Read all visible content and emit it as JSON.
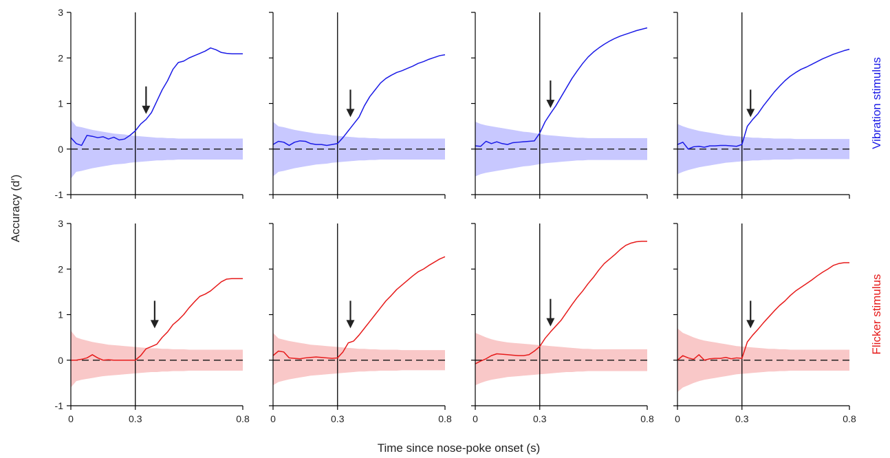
{
  "figure": {
    "ylabel": "Accuracy (d′)",
    "xlabel": "Time since nose-poke onset (s)",
    "row_labels": [
      {
        "text": "Vibration stimulus",
        "color": "#1a1ae6"
      },
      {
        "text": "Flicker stimulus",
        "color": "#e61a1a"
      }
    ]
  },
  "chart_data": [
    {
      "type": "line",
      "row": "Vibration stimulus",
      "xlim": [
        0,
        0.8
      ],
      "ylim": [
        -1,
        3
      ],
      "xticks": [
        "0",
        "0.3",
        "0.8"
      ],
      "yticks": [
        "-1",
        "0",
        "1",
        "2",
        "3"
      ],
      "color": "#1a1ae6",
      "band_color": "#c8c8ff",
      "onset_line_x": 0.3,
      "arrow_x": 0.35,
      "x": [
        0,
        0.025,
        0.05,
        0.075,
        0.1,
        0.125,
        0.15,
        0.175,
        0.2,
        0.225,
        0.25,
        0.275,
        0.3,
        0.325,
        0.35,
        0.375,
        0.4,
        0.425,
        0.45,
        0.475,
        0.5,
        0.525,
        0.55,
        0.575,
        0.6,
        0.625,
        0.65,
        0.675,
        0.7,
        0.725,
        0.75,
        0.775,
        0.8
      ],
      "y": [
        0.25,
        0.12,
        0.08,
        0.3,
        0.28,
        0.25,
        0.27,
        0.22,
        0.26,
        0.2,
        0.22,
        0.3,
        0.4,
        0.55,
        0.65,
        0.8,
        1.05,
        1.3,
        1.5,
        1.75,
        1.9,
        1.93,
        2.0,
        2.05,
        2.1,
        2.15,
        2.22,
        2.18,
        2.12,
        2.1,
        2.09,
        2.09,
        2.09
      ],
      "band_upper": [
        0.65,
        0.5,
        0.48,
        0.45,
        0.42,
        0.4,
        0.38,
        0.36,
        0.34,
        0.33,
        0.32,
        0.3,
        0.29,
        0.28,
        0.27,
        0.26,
        0.25,
        0.25,
        0.24,
        0.24,
        0.23,
        0.23,
        0.23,
        0.23,
        0.23,
        0.23,
        0.23,
        0.23,
        0.23,
        0.23,
        0.23,
        0.23,
        0.23
      ],
      "band_lower": [
        -0.65,
        -0.5,
        -0.48,
        -0.45,
        -0.42,
        -0.4,
        -0.38,
        -0.36,
        -0.34,
        -0.33,
        -0.32,
        -0.3,
        -0.29,
        -0.28,
        -0.27,
        -0.26,
        -0.25,
        -0.25,
        -0.24,
        -0.24,
        -0.23,
        -0.23,
        -0.23,
        -0.23,
        -0.23,
        -0.23,
        -0.23,
        -0.23,
        -0.23,
        -0.23,
        -0.23,
        -0.23,
        -0.23
      ]
    },
    {
      "type": "line",
      "row": "Vibration stimulus",
      "xlim": [
        0,
        0.8
      ],
      "ylim": [
        -1,
        3
      ],
      "xticks": [
        "0",
        "0.3",
        "0.8"
      ],
      "yticks": [
        "-1",
        "0",
        "1",
        "2",
        "3"
      ],
      "color": "#1a1ae6",
      "band_color": "#c8c8ff",
      "onset_line_x": 0.3,
      "arrow_x": 0.36,
      "x": [
        0,
        0.025,
        0.05,
        0.075,
        0.1,
        0.125,
        0.15,
        0.175,
        0.2,
        0.225,
        0.25,
        0.275,
        0.3,
        0.325,
        0.35,
        0.375,
        0.4,
        0.425,
        0.45,
        0.475,
        0.5,
        0.525,
        0.55,
        0.575,
        0.6,
        0.625,
        0.65,
        0.675,
        0.7,
        0.725,
        0.75,
        0.775,
        0.8
      ],
      "y": [
        0.1,
        0.17,
        0.15,
        0.08,
        0.15,
        0.18,
        0.17,
        0.12,
        0.1,
        0.1,
        0.08,
        0.1,
        0.12,
        0.25,
        0.4,
        0.55,
        0.7,
        0.95,
        1.15,
        1.3,
        1.45,
        1.55,
        1.62,
        1.68,
        1.72,
        1.77,
        1.82,
        1.88,
        1.92,
        1.97,
        2.01,
        2.05,
        2.07
      ],
      "band_upper": [
        0.6,
        0.5,
        0.48,
        0.45,
        0.42,
        0.4,
        0.38,
        0.36,
        0.34,
        0.33,
        0.32,
        0.3,
        0.29,
        0.28,
        0.27,
        0.26,
        0.25,
        0.25,
        0.24,
        0.24,
        0.23,
        0.23,
        0.23,
        0.23,
        0.23,
        0.23,
        0.23,
        0.23,
        0.23,
        0.23,
        0.23,
        0.23,
        0.23
      ],
      "band_lower": [
        -0.6,
        -0.5,
        -0.48,
        -0.45,
        -0.42,
        -0.4,
        -0.38,
        -0.36,
        -0.34,
        -0.33,
        -0.32,
        -0.3,
        -0.29,
        -0.28,
        -0.27,
        -0.26,
        -0.25,
        -0.25,
        -0.24,
        -0.24,
        -0.23,
        -0.23,
        -0.23,
        -0.23,
        -0.23,
        -0.23,
        -0.23,
        -0.23,
        -0.23,
        -0.23,
        -0.23,
        -0.23,
        -0.23
      ]
    },
    {
      "type": "line",
      "row": "Vibration stimulus",
      "xlim": [
        0,
        0.8
      ],
      "ylim": [
        -1,
        3
      ],
      "xticks": [
        "0",
        "0.3",
        "0.8"
      ],
      "yticks": [
        "-1",
        "0",
        "1",
        "2",
        "3"
      ],
      "color": "#1a1ae6",
      "band_color": "#c8c8ff",
      "onset_line_x": 0.3,
      "arrow_x": 0.35,
      "x": [
        0,
        0.025,
        0.05,
        0.075,
        0.1,
        0.125,
        0.15,
        0.175,
        0.2,
        0.225,
        0.25,
        0.275,
        0.3,
        0.325,
        0.35,
        0.375,
        0.4,
        0.425,
        0.45,
        0.475,
        0.5,
        0.525,
        0.55,
        0.575,
        0.6,
        0.625,
        0.65,
        0.675,
        0.7,
        0.725,
        0.75,
        0.775,
        0.8
      ],
      "y": [
        0.07,
        0.06,
        0.17,
        0.12,
        0.16,
        0.12,
        0.1,
        0.14,
        0.15,
        0.16,
        0.17,
        0.18,
        0.35,
        0.6,
        0.78,
        0.95,
        1.15,
        1.35,
        1.55,
        1.72,
        1.88,
        2.02,
        2.13,
        2.22,
        2.3,
        2.37,
        2.43,
        2.48,
        2.52,
        2.56,
        2.6,
        2.63,
        2.66
      ],
      "band_upper": [
        0.6,
        0.55,
        0.52,
        0.5,
        0.48,
        0.46,
        0.44,
        0.42,
        0.4,
        0.38,
        0.37,
        0.35,
        0.33,
        0.31,
        0.3,
        0.29,
        0.28,
        0.27,
        0.26,
        0.25,
        0.25,
        0.24,
        0.24,
        0.24,
        0.24,
        0.24,
        0.24,
        0.24,
        0.24,
        0.24,
        0.24,
        0.24,
        0.24
      ],
      "band_lower": [
        -0.6,
        -0.55,
        -0.52,
        -0.5,
        -0.48,
        -0.46,
        -0.44,
        -0.42,
        -0.4,
        -0.38,
        -0.37,
        -0.35,
        -0.33,
        -0.31,
        -0.3,
        -0.29,
        -0.28,
        -0.27,
        -0.26,
        -0.25,
        -0.25,
        -0.24,
        -0.24,
        -0.24,
        -0.24,
        -0.24,
        -0.24,
        -0.24,
        -0.24,
        -0.24,
        -0.24,
        -0.24,
        -0.24
      ]
    },
    {
      "type": "line",
      "row": "Vibration stimulus",
      "xlim": [
        0,
        0.8
      ],
      "ylim": [
        -1,
        3
      ],
      "xticks": [
        "0",
        "0.3",
        "0.8"
      ],
      "yticks": [
        "-1",
        "0",
        "1",
        "2",
        "3"
      ],
      "color": "#1a1ae6",
      "band_color": "#c8c8ff",
      "onset_line_x": 0.3,
      "arrow_x": 0.34,
      "x": [
        0,
        0.025,
        0.05,
        0.075,
        0.1,
        0.125,
        0.15,
        0.175,
        0.2,
        0.225,
        0.25,
        0.275,
        0.3,
        0.325,
        0.35,
        0.375,
        0.4,
        0.425,
        0.45,
        0.475,
        0.5,
        0.525,
        0.55,
        0.575,
        0.6,
        0.625,
        0.65,
        0.675,
        0.7,
        0.725,
        0.75,
        0.775,
        0.8
      ],
      "y": [
        0.1,
        0.15,
        0.0,
        0.05,
        0.06,
        0.04,
        0.07,
        0.07,
        0.08,
        0.08,
        0.07,
        0.06,
        0.1,
        0.5,
        0.65,
        0.78,
        0.95,
        1.1,
        1.25,
        1.38,
        1.5,
        1.6,
        1.68,
        1.75,
        1.8,
        1.86,
        1.92,
        1.98,
        2.03,
        2.08,
        2.12,
        2.16,
        2.19
      ],
      "band_upper": [
        0.55,
        0.5,
        0.46,
        0.43,
        0.4,
        0.38,
        0.36,
        0.34,
        0.32,
        0.3,
        0.29,
        0.28,
        0.27,
        0.26,
        0.25,
        0.25,
        0.24,
        0.24,
        0.23,
        0.23,
        0.23,
        0.23,
        0.22,
        0.22,
        0.22,
        0.22,
        0.22,
        0.22,
        0.22,
        0.22,
        0.22,
        0.22,
        0.22
      ],
      "band_lower": [
        -0.55,
        -0.5,
        -0.46,
        -0.43,
        -0.4,
        -0.38,
        -0.36,
        -0.34,
        -0.32,
        -0.3,
        -0.29,
        -0.28,
        -0.27,
        -0.26,
        -0.25,
        -0.25,
        -0.24,
        -0.24,
        -0.23,
        -0.23,
        -0.23,
        -0.23,
        -0.22,
        -0.22,
        -0.22,
        -0.22,
        -0.22,
        -0.22,
        -0.22,
        -0.22,
        -0.22,
        -0.22,
        -0.22
      ]
    },
    {
      "type": "line",
      "row": "Flicker stimulus",
      "xlim": [
        0,
        0.8
      ],
      "ylim": [
        -1,
        3
      ],
      "xticks": [
        "0",
        "0.3",
        "0.8"
      ],
      "yticks": [
        "-1",
        "0",
        "1",
        "2",
        "3"
      ],
      "color": "#e61a1a",
      "band_color": "#f9c8c8",
      "onset_line_x": 0.3,
      "arrow_x": 0.39,
      "x": [
        0,
        0.025,
        0.05,
        0.075,
        0.1,
        0.125,
        0.15,
        0.175,
        0.2,
        0.225,
        0.25,
        0.275,
        0.3,
        0.325,
        0.35,
        0.375,
        0.4,
        0.425,
        0.45,
        0.475,
        0.5,
        0.525,
        0.55,
        0.575,
        0.6,
        0.625,
        0.65,
        0.675,
        0.7,
        0.725,
        0.75,
        0.775,
        0.8
      ],
      "y": [
        0.0,
        0.0,
        0.02,
        0.05,
        0.12,
        0.05,
        0.0,
        0.01,
        0.0,
        0.0,
        0.0,
        0.0,
        0.0,
        0.1,
        0.25,
        0.3,
        0.35,
        0.5,
        0.62,
        0.78,
        0.88,
        1.0,
        1.15,
        1.28,
        1.4,
        1.45,
        1.52,
        1.62,
        1.72,
        1.78,
        1.79,
        1.79,
        1.79
      ],
      "band_upper": [
        0.65,
        0.5,
        0.46,
        0.43,
        0.4,
        0.38,
        0.36,
        0.34,
        0.33,
        0.32,
        0.31,
        0.3,
        0.29,
        0.28,
        0.27,
        0.26,
        0.26,
        0.25,
        0.25,
        0.24,
        0.24,
        0.24,
        0.23,
        0.23,
        0.23,
        0.23,
        0.23,
        0.23,
        0.23,
        0.23,
        0.23,
        0.23,
        0.23
      ],
      "band_lower": [
        -0.6,
        -0.46,
        -0.43,
        -0.41,
        -0.39,
        -0.37,
        -0.35,
        -0.34,
        -0.33,
        -0.32,
        -0.31,
        -0.3,
        -0.29,
        -0.28,
        -0.27,
        -0.26,
        -0.26,
        -0.25,
        -0.25,
        -0.24,
        -0.24,
        -0.24,
        -0.23,
        -0.23,
        -0.23,
        -0.23,
        -0.23,
        -0.23,
        -0.23,
        -0.23,
        -0.23,
        -0.23,
        -0.23
      ]
    },
    {
      "type": "line",
      "row": "Flicker stimulus",
      "xlim": [
        0,
        0.8
      ],
      "ylim": [
        -1,
        3
      ],
      "xticks": [
        "0",
        "0.3",
        "0.8"
      ],
      "yticks": [
        "-1",
        "0",
        "1",
        "2",
        "3"
      ],
      "color": "#e61a1a",
      "band_color": "#f9c8c8",
      "onset_line_x": 0.3,
      "arrow_x": 0.36,
      "x": [
        0,
        0.025,
        0.05,
        0.075,
        0.1,
        0.125,
        0.15,
        0.175,
        0.2,
        0.225,
        0.25,
        0.275,
        0.3,
        0.325,
        0.35,
        0.375,
        0.4,
        0.425,
        0.45,
        0.475,
        0.5,
        0.525,
        0.55,
        0.575,
        0.6,
        0.625,
        0.65,
        0.675,
        0.7,
        0.725,
        0.75,
        0.775,
        0.8
      ],
      "y": [
        0.1,
        0.2,
        0.18,
        0.05,
        0.04,
        0.03,
        0.05,
        0.06,
        0.07,
        0.06,
        0.05,
        0.04,
        0.05,
        0.18,
        0.38,
        0.42,
        0.55,
        0.7,
        0.85,
        1.0,
        1.15,
        1.3,
        1.42,
        1.55,
        1.65,
        1.75,
        1.85,
        1.94,
        2.0,
        2.08,
        2.15,
        2.22,
        2.27
      ],
      "band_upper": [
        0.6,
        0.48,
        0.45,
        0.42,
        0.4,
        0.38,
        0.36,
        0.34,
        0.33,
        0.32,
        0.31,
        0.3,
        0.29,
        0.28,
        0.27,
        0.26,
        0.25,
        0.25,
        0.24,
        0.24,
        0.23,
        0.23,
        0.23,
        0.23,
        0.22,
        0.22,
        0.22,
        0.22,
        0.22,
        0.22,
        0.22,
        0.22,
        0.22
      ],
      "band_lower": [
        -0.55,
        -0.48,
        -0.45,
        -0.42,
        -0.4,
        -0.38,
        -0.36,
        -0.34,
        -0.33,
        -0.32,
        -0.31,
        -0.3,
        -0.29,
        -0.28,
        -0.27,
        -0.26,
        -0.25,
        -0.25,
        -0.24,
        -0.24,
        -0.23,
        -0.23,
        -0.23,
        -0.23,
        -0.22,
        -0.22,
        -0.22,
        -0.22,
        -0.22,
        -0.22,
        -0.22,
        -0.22,
        -0.22
      ]
    },
    {
      "type": "line",
      "row": "Flicker stimulus",
      "xlim": [
        0,
        0.8
      ],
      "ylim": [
        -1,
        3
      ],
      "xticks": [
        "0",
        "0.3",
        "0.8"
      ],
      "yticks": [
        "-1",
        "0",
        "1",
        "2",
        "3"
      ],
      "color": "#e61a1a",
      "band_color": "#f9c8c8",
      "onset_line_x": 0.3,
      "arrow_x": 0.35,
      "x": [
        0,
        0.025,
        0.05,
        0.075,
        0.1,
        0.125,
        0.15,
        0.175,
        0.2,
        0.225,
        0.25,
        0.275,
        0.3,
        0.325,
        0.35,
        0.375,
        0.4,
        0.425,
        0.45,
        0.475,
        0.5,
        0.525,
        0.55,
        0.575,
        0.6,
        0.625,
        0.65,
        0.675,
        0.7,
        0.725,
        0.75,
        0.775,
        0.8
      ],
      "y": [
        -0.08,
        -0.02,
        0.03,
        0.1,
        0.14,
        0.13,
        0.12,
        0.11,
        0.1,
        0.1,
        0.12,
        0.2,
        0.3,
        0.48,
        0.62,
        0.75,
        0.88,
        1.05,
        1.22,
        1.38,
        1.52,
        1.68,
        1.82,
        1.98,
        2.12,
        2.22,
        2.32,
        2.43,
        2.52,
        2.57,
        2.6,
        2.61,
        2.61
      ],
      "band_upper": [
        0.6,
        0.55,
        0.5,
        0.46,
        0.43,
        0.41,
        0.39,
        0.38,
        0.37,
        0.36,
        0.35,
        0.34,
        0.33,
        0.32,
        0.31,
        0.3,
        0.29,
        0.28,
        0.27,
        0.26,
        0.25,
        0.25,
        0.24,
        0.24,
        0.24,
        0.24,
        0.24,
        0.24,
        0.24,
        0.24,
        0.24,
        0.24,
        0.24
      ],
      "band_lower": [
        -0.55,
        -0.5,
        -0.46,
        -0.43,
        -0.41,
        -0.39,
        -0.37,
        -0.36,
        -0.35,
        -0.34,
        -0.33,
        -0.32,
        -0.31,
        -0.3,
        -0.29,
        -0.28,
        -0.27,
        -0.26,
        -0.26,
        -0.25,
        -0.25,
        -0.24,
        -0.24,
        -0.24,
        -0.24,
        -0.24,
        -0.24,
        -0.24,
        -0.24,
        -0.24,
        -0.24,
        -0.24,
        -0.24
      ]
    },
    {
      "type": "line",
      "row": "Flicker stimulus",
      "xlim": [
        0,
        0.8
      ],
      "ylim": [
        -1,
        3
      ],
      "xticks": [
        "0",
        "0.3",
        "0.8"
      ],
      "yticks": [
        "-1",
        "0",
        "1",
        "2",
        "3"
      ],
      "color": "#e61a1a",
      "band_color": "#f9c8c8",
      "onset_line_x": 0.3,
      "arrow_x": 0.34,
      "x": [
        0,
        0.025,
        0.05,
        0.075,
        0.1,
        0.125,
        0.15,
        0.175,
        0.2,
        0.225,
        0.25,
        0.275,
        0.3,
        0.325,
        0.35,
        0.375,
        0.4,
        0.425,
        0.45,
        0.475,
        0.5,
        0.525,
        0.55,
        0.575,
        0.6,
        0.625,
        0.65,
        0.675,
        0.7,
        0.725,
        0.75,
        0.775,
        0.8
      ],
      "y": [
        0.0,
        0.1,
        0.05,
        0.02,
        0.12,
        0.0,
        0.03,
        0.04,
        0.04,
        0.06,
        0.03,
        0.05,
        0.04,
        0.4,
        0.55,
        0.68,
        0.82,
        0.95,
        1.08,
        1.2,
        1.3,
        1.42,
        1.52,
        1.6,
        1.68,
        1.76,
        1.85,
        1.93,
        2.0,
        2.08,
        2.12,
        2.14,
        2.14
      ],
      "band_upper": [
        0.7,
        0.6,
        0.55,
        0.5,
        0.46,
        0.43,
        0.41,
        0.39,
        0.37,
        0.35,
        0.33,
        0.31,
        0.3,
        0.29,
        0.28,
        0.27,
        0.26,
        0.25,
        0.25,
        0.24,
        0.24,
        0.23,
        0.23,
        0.23,
        0.23,
        0.23,
        0.23,
        0.23,
        0.23,
        0.23,
        0.23,
        0.23,
        0.23
      ],
      "band_lower": [
        -0.7,
        -0.6,
        -0.55,
        -0.5,
        -0.46,
        -0.43,
        -0.41,
        -0.39,
        -0.37,
        -0.35,
        -0.33,
        -0.31,
        -0.3,
        -0.29,
        -0.28,
        -0.27,
        -0.26,
        -0.25,
        -0.25,
        -0.24,
        -0.24,
        -0.23,
        -0.23,
        -0.23,
        -0.23,
        -0.23,
        -0.23,
        -0.23,
        -0.23,
        -0.23,
        -0.23,
        -0.23,
        -0.23
      ]
    }
  ]
}
